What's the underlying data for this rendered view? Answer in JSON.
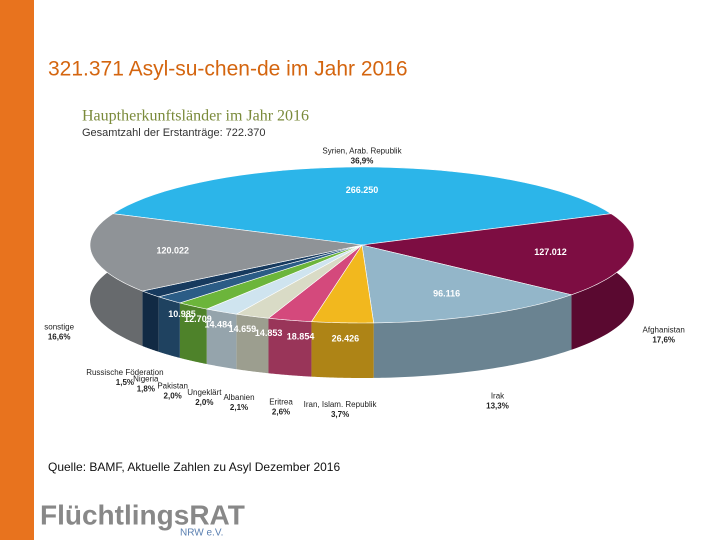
{
  "slide": {
    "title": "321.371 Asyl-su-chen-de im Jahr 2016",
    "source": "Quelle: BAMF, Aktuelle Zahlen zu Asyl Dezember 2016",
    "logo": "FlüchtlingsRAT",
    "logo_sub": "NRW e.V."
  },
  "chart_data": {
    "type": "pie",
    "title": "Hauptherkunftsländer im Jahr 2016",
    "subtitle": "Gesamtzahl der Erstanträge: 722.370",
    "categories": [
      "Syrien, Arab. Republik",
      "Afghanistan",
      "Irak",
      "Iran, Islam. Republik",
      "Eritrea",
      "Albanien",
      "Ungeklärt",
      "Pakistan",
      "Nigeria",
      "Russische Föderation",
      "sonstige"
    ],
    "values": [
      266250,
      127012,
      96116,
      26426,
      18854,
      14853,
      14659,
      14484,
      12709,
      10985,
      120022
    ],
    "value_labels": [
      "266.250",
      "127.012",
      "96.116",
      "26.426",
      "18.854",
      "14.853",
      "14.659",
      "14.484",
      "12.709",
      "10.985",
      "120.022"
    ],
    "percents": [
      36.9,
      17.6,
      13.3,
      3.7,
      2.6,
      2.1,
      2.0,
      2.0,
      1.8,
      1.5,
      16.6
    ],
    "percent_labels": [
      "36,9%",
      "17,6%",
      "13,3%",
      "3,7%",
      "2,6%",
      "2,1%",
      "2,0%",
      "2,0%",
      "1,8%",
      "1,5%",
      "16,6%"
    ],
    "colors": [
      "#2cb5e9",
      "#7d0d42",
      "#93b6c9",
      "#f2b81e",
      "#d4497c",
      "#d9dbc6",
      "#cfe4ef",
      "#6cb53b",
      "#2b5c86",
      "#173a5e",
      "#8f9397"
    ]
  }
}
